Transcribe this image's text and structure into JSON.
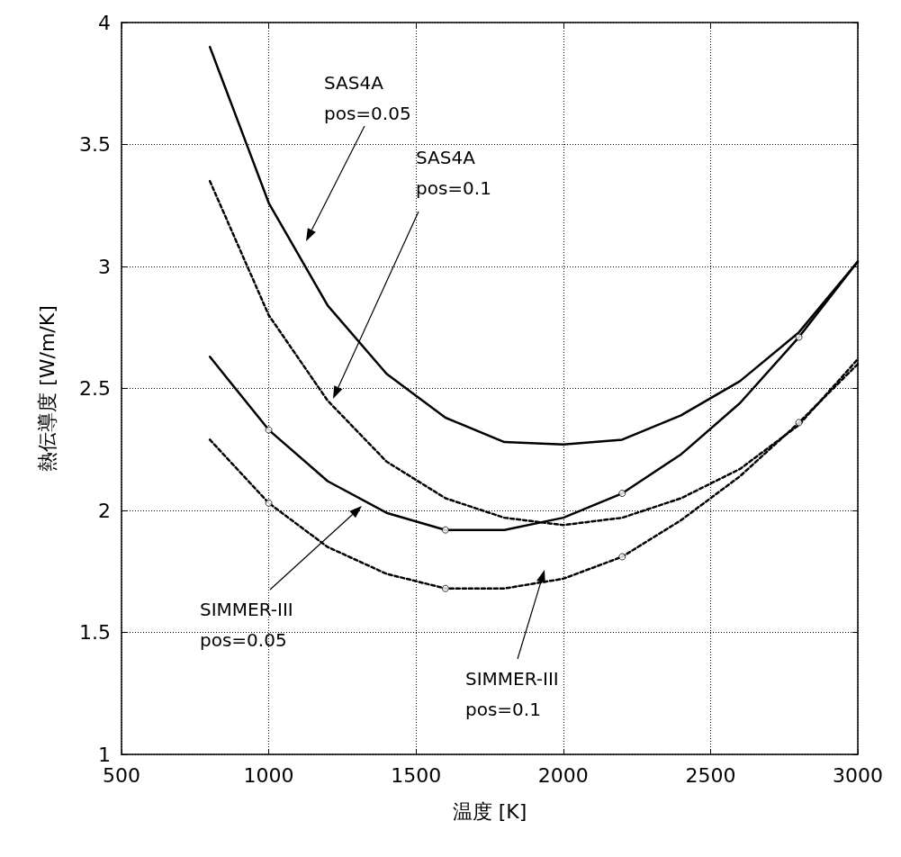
{
  "chart_data": {
    "type": "line",
    "xlabel": "温度 [K]",
    "ylabel": "熱伝導度 [W/m/K]",
    "xlim": [
      500,
      3000
    ],
    "xticks": [
      500,
      1000,
      1500,
      2000,
      2500,
      3000
    ],
    "ylim": [
      1,
      4
    ],
    "yticks": [
      1,
      1.5,
      2,
      2.5,
      3,
      3.5,
      4
    ],
    "grid": true,
    "series": [
      {
        "color": "#000000",
        "line_style": "solid",
        "marker": "none",
        "x": [
          800,
          1000,
          1200,
          1400,
          1600,
          1800,
          2000,
          2200,
          2400,
          2600,
          2800,
          3000
        ],
        "values": [
          3.9,
          3.26,
          2.84,
          2.56,
          2.38,
          2.28,
          2.27,
          2.29,
          2.39,
          2.53,
          2.73,
          3.02
        ]
      },
      {
        "color": "#000000",
        "line_style": "dashed",
        "marker": "none",
        "x": [
          800,
          1000,
          1200,
          1400,
          1600,
          1800,
          2000,
          2200,
          2400,
          2600,
          2800,
          3000
        ],
        "values": [
          3.35,
          2.8,
          2.45,
          2.2,
          2.05,
          1.97,
          1.94,
          1.97,
          2.05,
          2.17,
          2.35,
          2.62
        ]
      },
      {
        "color": "#000000",
        "line_style": "solid",
        "marker": "none",
        "x": [
          800,
          1000,
          1200,
          1400,
          1600,
          1800,
          2000,
          2200,
          2400,
          2600,
          2800,
          3000
        ],
        "values": [
          2.63,
          2.33,
          2.12,
          1.99,
          1.92,
          1.92,
          1.97,
          2.07,
          2.23,
          2.44,
          2.71,
          3.02
        ]
      },
      {
        "color": "#000000",
        "line_style": "dashed",
        "marker": "none",
        "x": [
          800,
          1000,
          1200,
          1400,
          1600,
          1800,
          2000,
          2200,
          2400,
          2600,
          2800,
          3000
        ],
        "values": [
          2.29,
          2.03,
          1.85,
          1.74,
          1.68,
          1.68,
          1.72,
          1.81,
          1.96,
          2.14,
          2.36,
          2.6
        ]
      },
      {
        "type": "scatter",
        "color": "#000000",
        "marker": "circle",
        "x": [
          1000,
          1600,
          2200,
          2800
        ],
        "values": [
          2.33,
          1.92,
          2.07,
          2.71
        ]
      },
      {
        "type": "scatter",
        "color": "#000000",
        "marker": "circle",
        "x": [
          1000,
          1600,
          2200,
          2800
        ],
        "values": [
          2.03,
          1.68,
          1.81,
          2.36
        ]
      }
    ],
    "annotations": [
      "SAS4A\npos=0.05",
      "SAS4A\npos=0.1",
      "SIMMER-III\npos=0.05",
      "SIMMER-III\npos=0.1"
    ]
  }
}
